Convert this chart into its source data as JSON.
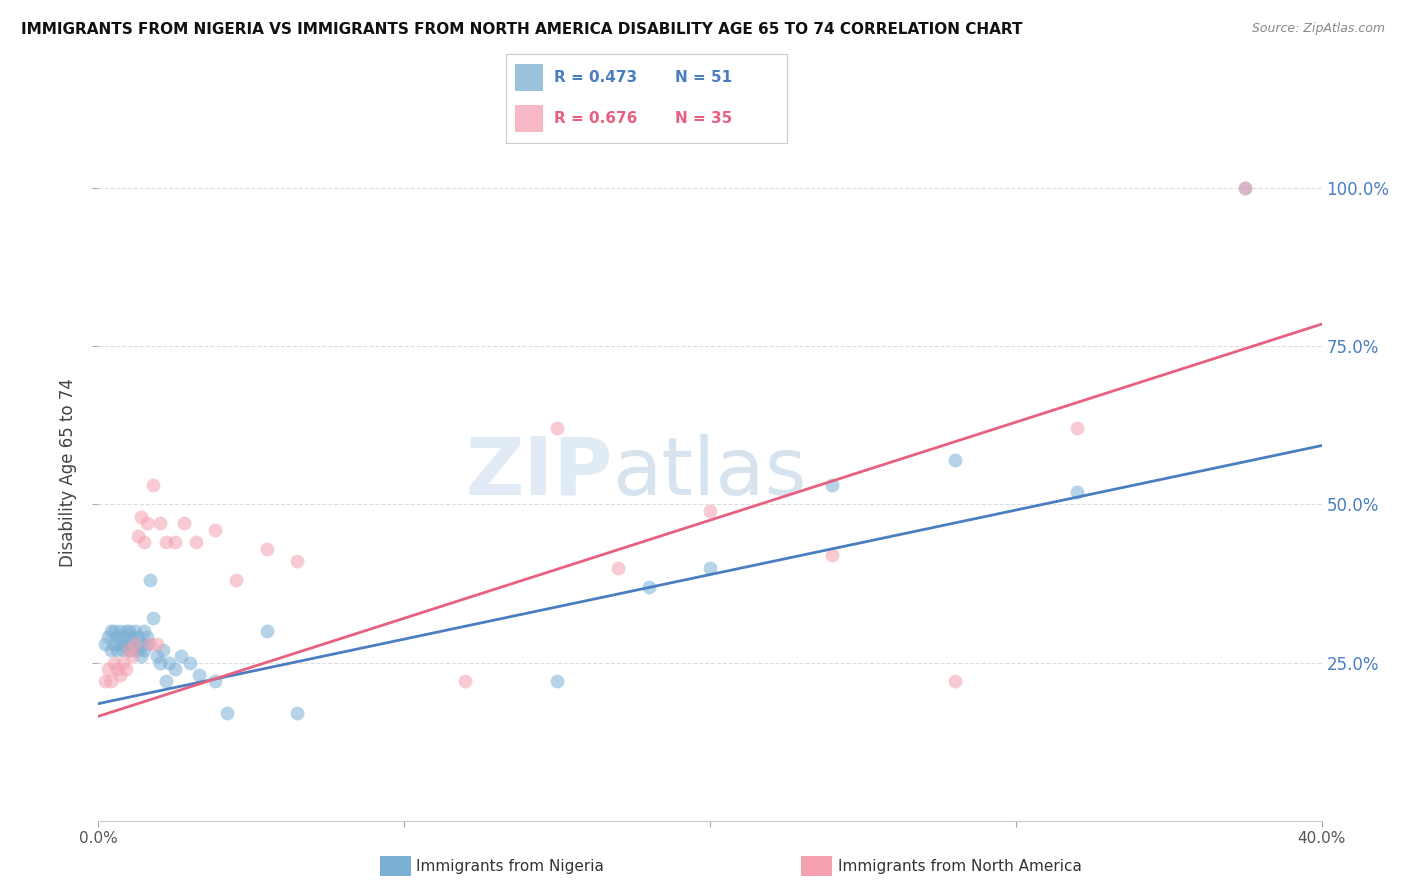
{
  "title": "IMMIGRANTS FROM NIGERIA VS IMMIGRANTS FROM NORTH AMERICA DISABILITY AGE 65 TO 74 CORRELATION CHART",
  "source": "Source: ZipAtlas.com",
  "ylabel": "Disability Age 65 to 74",
  "y_ticks": [
    "25.0%",
    "50.0%",
    "75.0%",
    "100.0%"
  ],
  "y_tick_vals": [
    0.25,
    0.5,
    0.75,
    1.0
  ],
  "x_lim": [
    0.0,
    0.4
  ],
  "y_lim": [
    0.0,
    1.1
  ],
  "legend_label1": "Immigrants from Nigeria",
  "legend_label2": "Immigrants from North America",
  "R1": 0.473,
  "N1": 51,
  "R2": 0.676,
  "N2": 35,
  "color_blue": "#7BAFD4",
  "color_pink": "#F4A0B0",
  "color_blue_line": "#4A7EC0",
  "color_pink_line": "#E86080",
  "color_blue_text": "#4A7EC0",
  "color_pink_text": "#E86080",
  "nigeria_x": [
    0.002,
    0.003,
    0.004,
    0.004,
    0.005,
    0.005,
    0.006,
    0.006,
    0.007,
    0.007,
    0.008,
    0.008,
    0.009,
    0.009,
    0.01,
    0.01,
    0.01,
    0.011,
    0.011,
    0.012,
    0.012,
    0.013,
    0.013,
    0.014,
    0.014,
    0.015,
    0.015,
    0.016,
    0.016,
    0.017,
    0.018,
    0.019,
    0.02,
    0.021,
    0.022,
    0.023,
    0.025,
    0.027,
    0.03,
    0.033,
    0.038,
    0.042,
    0.055,
    0.065,
    0.15,
    0.18,
    0.2,
    0.24,
    0.28,
    0.32,
    0.375
  ],
  "nigeria_y": [
    0.28,
    0.29,
    0.27,
    0.3,
    0.28,
    0.3,
    0.27,
    0.29,
    0.28,
    0.3,
    0.27,
    0.29,
    0.28,
    0.3,
    0.27,
    0.28,
    0.3,
    0.29,
    0.27,
    0.28,
    0.3,
    0.27,
    0.29,
    0.28,
    0.26,
    0.3,
    0.27,
    0.29,
    0.28,
    0.38,
    0.32,
    0.26,
    0.25,
    0.27,
    0.22,
    0.25,
    0.24,
    0.26,
    0.25,
    0.23,
    0.22,
    0.17,
    0.3,
    0.17,
    0.22,
    0.37,
    0.4,
    0.53,
    0.57,
    0.52,
    1.0
  ],
  "north_america_x": [
    0.002,
    0.003,
    0.004,
    0.005,
    0.006,
    0.007,
    0.008,
    0.009,
    0.01,
    0.011,
    0.012,
    0.013,
    0.014,
    0.015,
    0.016,
    0.017,
    0.018,
    0.019,
    0.02,
    0.022,
    0.025,
    0.028,
    0.032,
    0.038,
    0.045,
    0.055,
    0.065,
    0.12,
    0.15,
    0.17,
    0.2,
    0.24,
    0.28,
    0.32,
    0.375
  ],
  "north_america_y": [
    0.22,
    0.24,
    0.22,
    0.25,
    0.24,
    0.23,
    0.25,
    0.24,
    0.27,
    0.26,
    0.28,
    0.45,
    0.48,
    0.44,
    0.47,
    0.28,
    0.53,
    0.28,
    0.47,
    0.44,
    0.44,
    0.47,
    0.44,
    0.46,
    0.38,
    0.43,
    0.41,
    0.22,
    0.62,
    0.4,
    0.49,
    0.42,
    0.22,
    0.62,
    1.0
  ],
  "watermark_part1": "ZIP",
  "watermark_part2": "atlas",
  "background_color": "#FFFFFF",
  "grid_color": "#DDDDDD",
  "tick_color": "#555555",
  "reg_line_intercept_blue": 0.185,
  "reg_line_slope_blue": 1.02,
  "reg_line_intercept_pink": 0.165,
  "reg_line_slope_pink": 1.55
}
